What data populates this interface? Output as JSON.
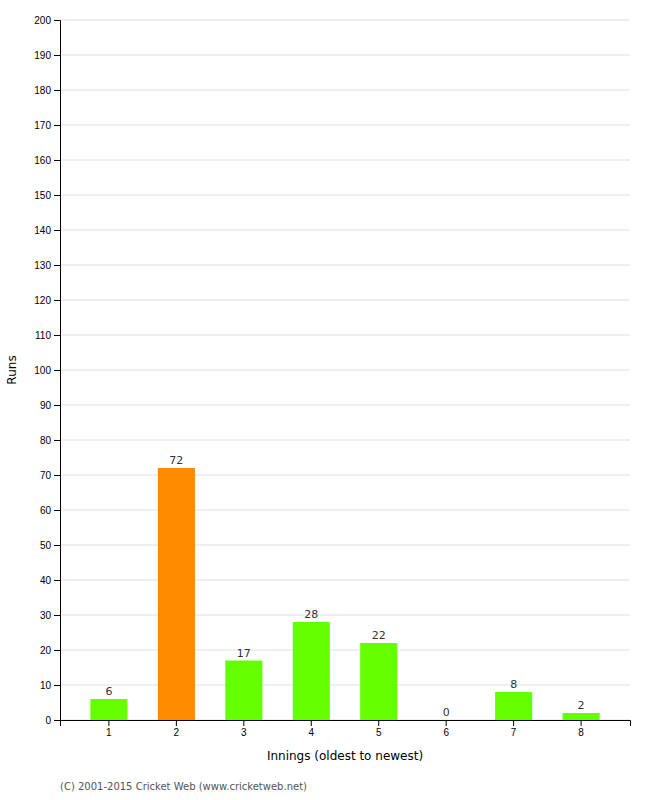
{
  "chart_data": {
    "type": "bar",
    "xlabel": "Innings (oldest to newest)",
    "ylabel": "Runs",
    "categories": [
      "1",
      "2",
      "3",
      "4",
      "5",
      "6",
      "7",
      "8"
    ],
    "values": [
      6,
      72,
      17,
      28,
      22,
      0,
      8,
      2
    ],
    "colors": [
      "#66ff00",
      "#ff8c00",
      "#66ff00",
      "#66ff00",
      "#66ff00",
      "#66ff00",
      "#66ff00",
      "#66ff00"
    ],
    "ylim": [
      0,
      200
    ],
    "yticks": [
      0,
      10,
      20,
      30,
      40,
      50,
      60,
      70,
      80,
      90,
      100,
      110,
      120,
      130,
      140,
      150,
      160,
      170,
      180,
      190,
      200
    ],
    "grid": true,
    "data_labels": true,
    "annotations": [
      "(C) 2001-2015 Cricket Web (www.cricketweb.net)"
    ]
  }
}
